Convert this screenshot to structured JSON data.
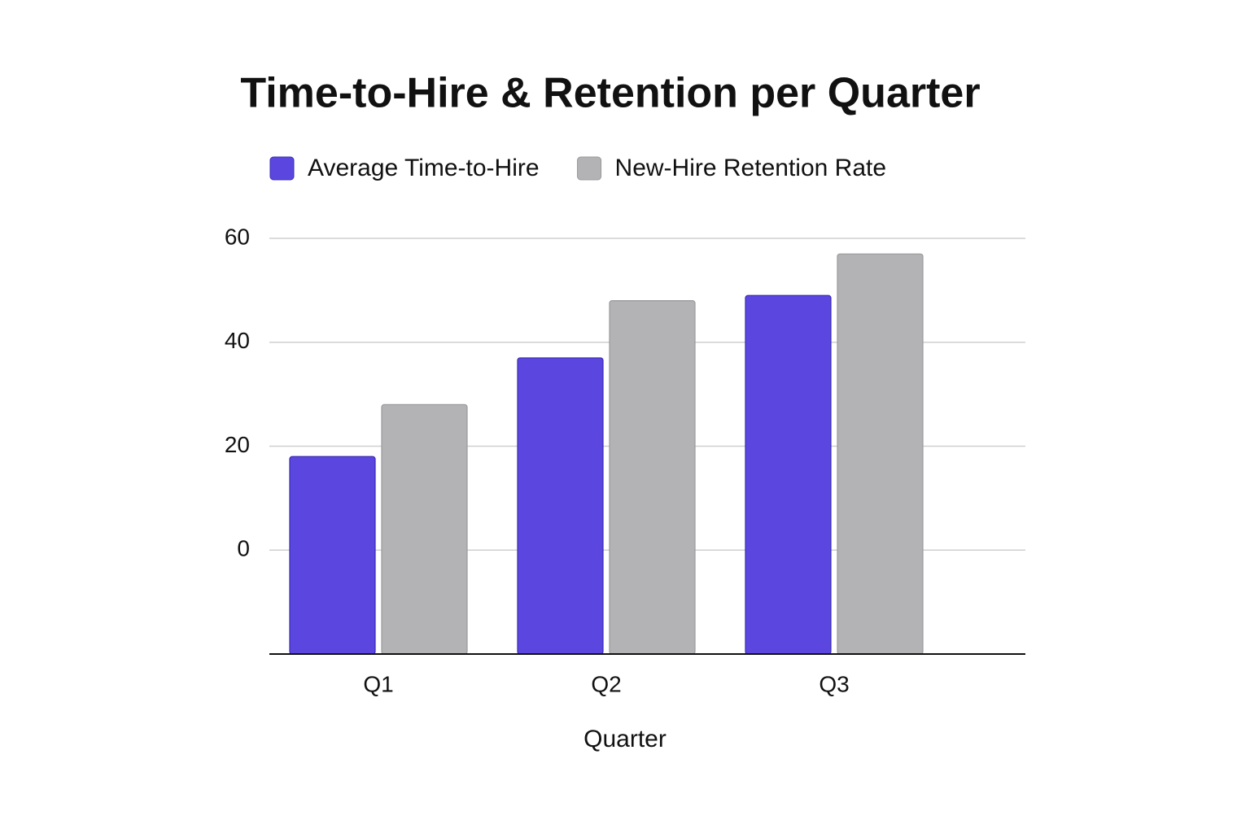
{
  "chart_data": {
    "type": "bar",
    "title": "Time-to-Hire & Retention per Quarter",
    "x_label": "Quarter",
    "categories": [
      "Q1",
      "Q2",
      "Q3"
    ],
    "series": [
      {
        "name": "Average Time-to-Hire",
        "color": "#5b47e0",
        "values": [
          18,
          37,
          49
        ]
      },
      {
        "name": "New-Hire Retention Rate",
        "color": "#b3b3b5",
        "values": [
          28,
          48,
          57
        ]
      }
    ],
    "ylim": [
      -20,
      60
    ],
    "yticks": [
      0,
      20,
      40,
      60
    ],
    "grid": true,
    "legend": "top"
  }
}
